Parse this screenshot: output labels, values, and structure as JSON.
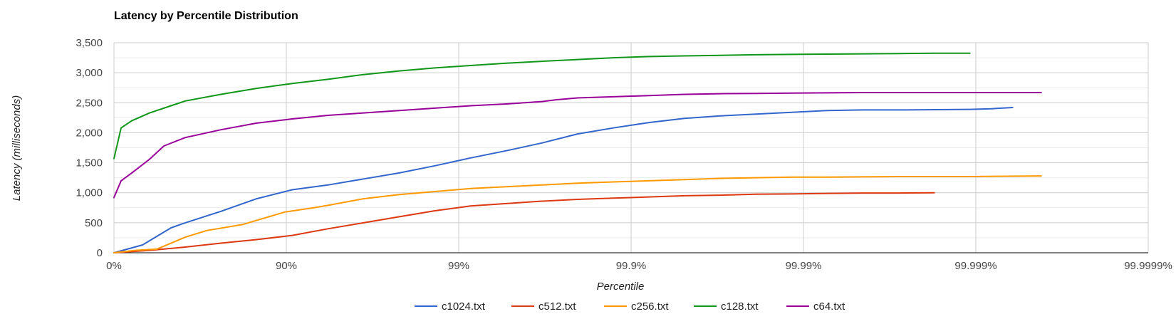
{
  "chart_data": {
    "type": "line",
    "title": "Latency by Percentile Distribution",
    "xlabel": "Percentile",
    "ylabel": "Latency (milliseconds)",
    "x_scale": "log-percentile",
    "x_ticks": [
      "0%",
      "90%",
      "99%",
      "99.9%",
      "99.99%",
      "99.999%",
      "99.9999%"
    ],
    "y_ticks": [
      "0",
      "500",
      "1,000",
      "1,500",
      "2,000",
      "2,500",
      "3,000",
      "3,500"
    ],
    "ylim": [
      0,
      3500
    ],
    "grid": true,
    "legend_position": "bottom",
    "series": [
      {
        "name": "c1024.txt",
        "color": "#3366cc",
        "points": [
          [
            0,
            0
          ],
          [
            40,
            130
          ],
          [
            80,
            415
          ],
          [
            100,
            500
          ],
          [
            150,
            690
          ],
          [
            200,
            900
          ],
          [
            250,
            1050
          ],
          [
            300,
            1130
          ],
          [
            350,
            1230
          ],
          [
            400,
            1330
          ],
          [
            450,
            1450
          ],
          [
            500,
            1580
          ],
          [
            550,
            1700
          ],
          [
            600,
            1830
          ],
          [
            650,
            1980
          ],
          [
            700,
            2080
          ],
          [
            750,
            2170
          ],
          [
            800,
            2240
          ],
          [
            850,
            2280
          ],
          [
            900,
            2310
          ],
          [
            950,
            2340
          ],
          [
            1000,
            2370
          ],
          [
            1050,
            2380
          ],
          [
            1100,
            2380
          ],
          [
            1200,
            2390
          ],
          [
            1230,
            2400
          ],
          [
            1260,
            2420
          ]
        ]
      },
      {
        "name": "c512.txt",
        "color": "#dc3912",
        "points": [
          [
            0,
            0
          ],
          [
            50,
            40
          ],
          [
            100,
            95
          ],
          [
            150,
            160
          ],
          [
            200,
            220
          ],
          [
            250,
            290
          ],
          [
            300,
            400
          ],
          [
            350,
            500
          ],
          [
            400,
            600
          ],
          [
            450,
            700
          ],
          [
            500,
            780
          ],
          [
            550,
            820
          ],
          [
            600,
            860
          ],
          [
            650,
            890
          ],
          [
            700,
            910
          ],
          [
            750,
            930
          ],
          [
            800,
            950
          ],
          [
            850,
            960
          ],
          [
            900,
            975
          ],
          [
            950,
            980
          ],
          [
            1000,
            990
          ],
          [
            1050,
            995
          ],
          [
            1100,
            995
          ],
          [
            1150,
            1000
          ]
        ]
      },
      {
        "name": "c256.txt",
        "color": "#ff9900",
        "points": [
          [
            0,
            0
          ],
          [
            30,
            40
          ],
          [
            60,
            60
          ],
          [
            100,
            260
          ],
          [
            130,
            370
          ],
          [
            180,
            470
          ],
          [
            240,
            680
          ],
          [
            280,
            750
          ],
          [
            300,
            790
          ],
          [
            350,
            900
          ],
          [
            400,
            970
          ],
          [
            450,
            1020
          ],
          [
            500,
            1070
          ],
          [
            550,
            1100
          ],
          [
            600,
            1130
          ],
          [
            650,
            1160
          ],
          [
            700,
            1180
          ],
          [
            750,
            1200
          ],
          [
            800,
            1220
          ],
          [
            850,
            1240
          ],
          [
            900,
            1250
          ],
          [
            950,
            1260
          ],
          [
            1000,
            1260
          ],
          [
            1100,
            1270
          ],
          [
            1200,
            1270
          ],
          [
            1300,
            1280
          ]
        ]
      },
      {
        "name": "c128.txt",
        "color": "#109618",
        "points": [
          [
            0,
            1570
          ],
          [
            10,
            2080
          ],
          [
            25,
            2200
          ],
          [
            50,
            2330
          ],
          [
            80,
            2450
          ],
          [
            100,
            2530
          ],
          [
            150,
            2640
          ],
          [
            200,
            2740
          ],
          [
            250,
            2820
          ],
          [
            300,
            2890
          ],
          [
            350,
            2970
          ],
          [
            400,
            3030
          ],
          [
            450,
            3080
          ],
          [
            500,
            3120
          ],
          [
            550,
            3160
          ],
          [
            600,
            3190
          ],
          [
            650,
            3220
          ],
          [
            700,
            3250
          ],
          [
            750,
            3270
          ],
          [
            800,
            3280
          ],
          [
            850,
            3290
          ],
          [
            900,
            3300
          ],
          [
            950,
            3305
          ],
          [
            1000,
            3310
          ],
          [
            1050,
            3315
          ],
          [
            1100,
            3320
          ],
          [
            1150,
            3325
          ],
          [
            1200,
            3325
          ]
        ]
      },
      {
        "name": "c64.txt",
        "color": "#990099",
        "points": [
          [
            0,
            920
          ],
          [
            10,
            1200
          ],
          [
            25,
            1330
          ],
          [
            50,
            1560
          ],
          [
            70,
            1780
          ],
          [
            100,
            1920
          ],
          [
            150,
            2050
          ],
          [
            200,
            2160
          ],
          [
            250,
            2230
          ],
          [
            300,
            2290
          ],
          [
            350,
            2330
          ],
          [
            400,
            2370
          ],
          [
            450,
            2410
          ],
          [
            500,
            2450
          ],
          [
            550,
            2480
          ],
          [
            600,
            2520
          ],
          [
            620,
            2550
          ],
          [
            650,
            2580
          ],
          [
            700,
            2600
          ],
          [
            750,
            2620
          ],
          [
            800,
            2640
          ],
          [
            850,
            2650
          ],
          [
            900,
            2655
          ],
          [
            950,
            2660
          ],
          [
            1000,
            2665
          ],
          [
            1050,
            2670
          ],
          [
            1100,
            2670
          ],
          [
            1200,
            2670
          ],
          [
            1300,
            2670
          ]
        ]
      }
    ]
  }
}
